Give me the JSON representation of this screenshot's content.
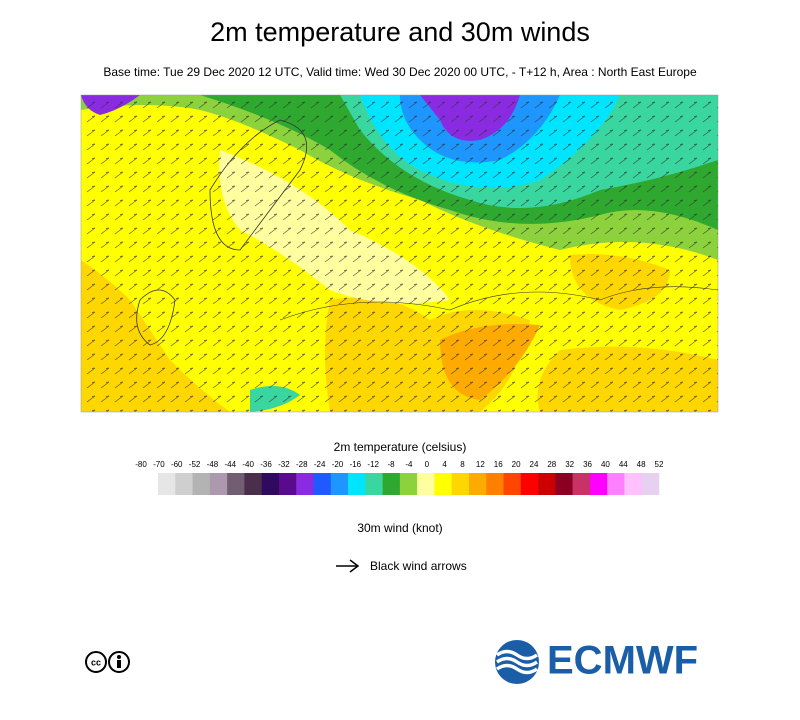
{
  "header": {
    "title": "2m temperature and 30m winds",
    "subtitle": "Base time: Tue 29 Dec 2020 12 UTC, Valid time: Wed 30 Dec 2020 00 UTC, - T+12 h, Area : North East Europe"
  },
  "legend": {
    "title": "2m temperature (celsius)",
    "labels": [
      -80,
      -70,
      -60,
      -52,
      -48,
      -44,
      -40,
      -36,
      -32,
      -28,
      -24,
      -20,
      -16,
      -12,
      -8,
      -4,
      0,
      4,
      8,
      12,
      16,
      20,
      24,
      28,
      32,
      36,
      40,
      44,
      48,
      52
    ],
    "colors": [
      "#e6e6e6",
      "#cfcfcf",
      "#b3b3b3",
      "#ad99ad",
      "#725e72",
      "#4b2e4b",
      "#2f0a5e",
      "#5a0a8c",
      "#8a2be2",
      "#1e5aff",
      "#1e96ff",
      "#00e5ff",
      "#3ad6a0",
      "#2ea82e",
      "#8cd23c",
      "#ffffa0",
      "#ffff00",
      "#ffd700",
      "#ffaa00",
      "#ff8000",
      "#ff4500",
      "#ff0000",
      "#cc0000",
      "#8b0022",
      "#c83264",
      "#ff00ff",
      "#ff80ff",
      "#ffc0ff",
      "#e6d2f0"
    ]
  },
  "wind": {
    "title": "30m wind (knot)",
    "arrow_label": "Black wind arrows"
  },
  "footer": {
    "logo": "ECMWF"
  }
}
